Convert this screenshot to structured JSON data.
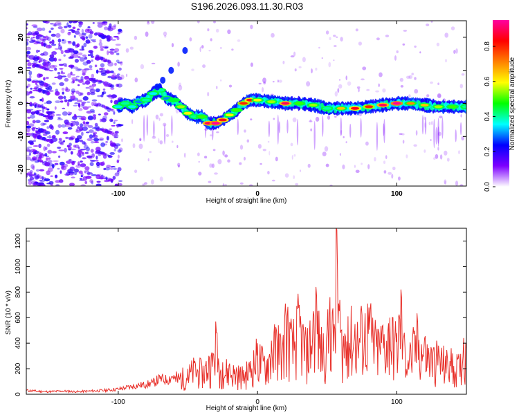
{
  "chart_data": [
    {
      "type": "heatmap",
      "title": "S196.2026.093.11.30.R03",
      "xlabel": "Height of straight line (km)",
      "ylabel": "Frequency (Hz)",
      "xlim": [
        -166,
        150
      ],
      "ylim": [
        -25,
        25
      ],
      "xticks": [
        -100,
        0,
        100
      ],
      "yticks": [
        -20,
        -10,
        0,
        10,
        20
      ],
      "colorbar": {
        "label": "Normalized spectral amplitude",
        "range": [
          0.0,
          0.95
        ],
        "ticks": [
          0.0,
          0.2,
          0.4,
          0.6,
          0.8
        ],
        "tick_labels": [
          "0.0",
          "0.2",
          "0.4",
          "0.6",
          "0.8"
        ],
        "colors": [
          "#ffffff",
          "#7d00ff",
          "#0000ff",
          "#00ffff",
          "#00ff00",
          "#ffff00",
          "#ff8000",
          "#ff0000",
          "#ff00a0"
        ]
      },
      "ridge": {
        "x": [
          -100,
          -95,
          -90,
          -85,
          -80,
          -75,
          -70,
          -65,
          -60,
          -55,
          -50,
          -45,
          -40,
          -35,
          -30,
          -25,
          -20,
          -15,
          -10,
          -5,
          0,
          10,
          20,
          30,
          40,
          50,
          60,
          70,
          80,
          90,
          100,
          110,
          120,
          130,
          140,
          150
        ],
        "frequency": [
          -1,
          0,
          -1,
          0.5,
          1,
          3,
          4,
          1.5,
          1,
          -1,
          -3,
          -4,
          -4,
          -6,
          -6,
          -5,
          -3.5,
          -2,
          0,
          1,
          1,
          0.5,
          0,
          0,
          -0.5,
          -1.5,
          -1.5,
          -1.5,
          -1,
          -0.5,
          0,
          0,
          -0.5,
          -1,
          -1,
          -1
        ],
        "amplitude": [
          0.35,
          0.4,
          0.35,
          0.3,
          0.4,
          0.35,
          0.4,
          0.3,
          0.45,
          0.55,
          0.6,
          0.4,
          0.5,
          0.9,
          0.95,
          0.85,
          0.6,
          0.5,
          0.8,
          0.85,
          0.6,
          0.55,
          0.9,
          0.5,
          0.55,
          0.4,
          0.65,
          0.85,
          0.8,
          0.9,
          0.95,
          0.7,
          0.65,
          0.55,
          0.5,
          0.4
        ]
      }
    },
    {
      "type": "line",
      "xlabel": "Height of straight line (km)",
      "ylabel": "SNR (10 * v/v)",
      "xlim": [
        -166,
        150
      ],
      "ylim": [
        0,
        1300
      ],
      "xticks": [
        -100,
        0,
        100
      ],
      "yticks": [
        0,
        200,
        400,
        600,
        800,
        1000,
        1200
      ],
      "color": "#e8302a",
      "series": [
        {
          "name": "SNR",
          "x": [
            -166,
            -160,
            -150,
            -140,
            -130,
            -120,
            -110,
            -100,
            -95,
            -90,
            -85,
            -80,
            -75,
            -70,
            -65,
            -60,
            -55,
            -50,
            -45,
            -40,
            -35,
            -32,
            -30,
            -28,
            -25,
            -20,
            -15,
            -10,
            -5,
            0,
            5,
            10,
            15,
            18,
            20,
            25,
            30,
            35,
            40,
            42,
            45,
            50,
            52,
            55,
            57,
            60,
            65,
            70,
            75,
            80,
            85,
            90,
            95,
            100,
            103,
            105,
            110,
            115,
            120,
            125,
            130,
            135,
            140,
            145,
            148,
            150
          ],
          "y": [
            30,
            25,
            20,
            25,
            20,
            25,
            30,
            40,
            50,
            60,
            70,
            75,
            90,
            120,
            110,
            150,
            170,
            200,
            260,
            230,
            300,
            320,
            570,
            280,
            250,
            240,
            210,
            190,
            260,
            400,
            300,
            420,
            540,
            380,
            710,
            480,
            700,
            420,
            650,
            840,
            470,
            500,
            760,
            550,
            1290,
            500,
            610,
            550,
            620,
            680,
            480,
            540,
            600,
            480,
            820,
            450,
            380,
            560,
            440,
            350,
            380,
            300,
            320,
            260,
            440,
            360
          ]
        }
      ]
    }
  ]
}
